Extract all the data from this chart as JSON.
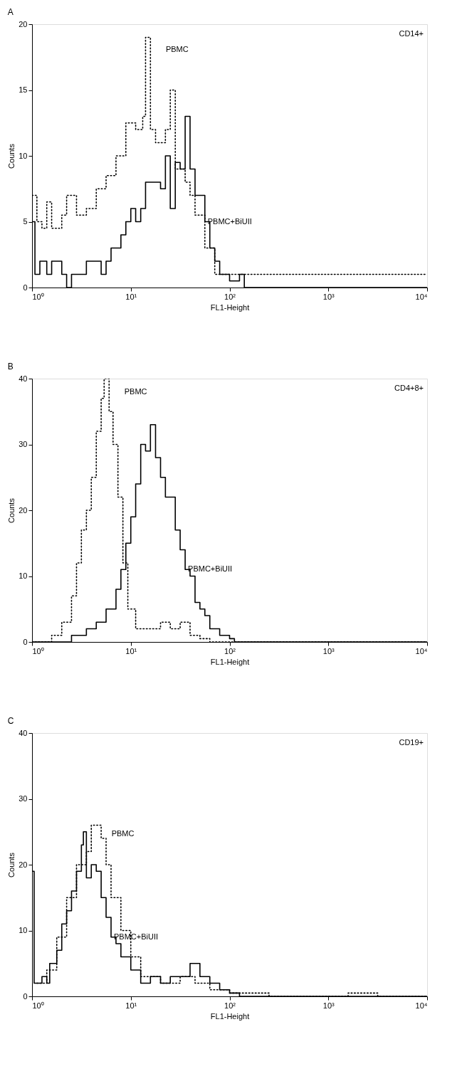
{
  "chart_data": [
    {
      "type": "step",
      "title": "A",
      "xlabel": "FL1-Height",
      "ylabel": "Counts",
      "annotations": [
        "CD14+"
      ],
      "log": "x",
      "grid": false,
      "xlim": [
        1,
        10000
      ],
      "xticks": [
        {
          "value": 1,
          "label": "10⁰"
        },
        {
          "value": 10,
          "label": "10¹"
        },
        {
          "value": 100,
          "label": "10²"
        },
        {
          "value": 1000,
          "label": "10³"
        },
        {
          "value": 10000,
          "label": "10⁴"
        }
      ],
      "ylim": [
        0,
        20
      ],
      "yticks": [
        0,
        5,
        10,
        15,
        20
      ],
      "series": [
        {
          "name": "PBMC",
          "color": "#000000",
          "line_style": "dotted",
          "x": [
            1,
            1.12,
            1.26,
            1.41,
            1.58,
            2.0,
            2.24,
            2.82,
            3.55,
            4.47,
            5.62,
            7.08,
            8.91,
            11.2,
            13.2,
            14.1,
            15.8,
            17.8,
            22.4,
            25.1,
            28.2,
            35.5,
            39.8,
            44.7,
            56.2,
            70.8,
            100,
            158,
            251,
            398,
            631,
            1000,
            1585,
            2512,
            3981,
            7943,
            10000
          ],
          "values": [
            7,
            5,
            4.5,
            6.5,
            4.5,
            5.5,
            7,
            5.5,
            6,
            7.5,
            8.5,
            10,
            12.5,
            12,
            13,
            19,
            12,
            11,
            12,
            15,
            9,
            8,
            7,
            5.5,
            3,
            1,
            1,
            1,
            1,
            1,
            1,
            1,
            1,
            1,
            1,
            1,
            1
          ]
        },
        {
          "name": "PBMC+BiUII",
          "color": "#000000",
          "line_style": "solid",
          "x": [
            1,
            1.07,
            1.2,
            1.41,
            1.58,
            2.0,
            2.24,
            2.51,
            3.16,
            3.55,
            4.47,
            5.01,
            5.62,
            6.31,
            7.94,
            8.91,
            10,
            11.2,
            12.6,
            14.1,
            20,
            22.4,
            25.1,
            28.2,
            31.6,
            35.5,
            39.8,
            44.7,
            56.2,
            63.1,
            70.8,
            79.4,
            100,
            126,
            141,
            200,
            1000,
            10000
          ],
          "values": [
            5,
            1,
            2,
            1,
            2,
            1,
            0,
            1,
            1,
            2,
            2,
            1,
            2,
            3,
            4,
            5,
            6,
            5,
            6,
            8,
            7.5,
            10,
            6,
            9.5,
            9,
            13,
            9,
            7,
            5,
            3,
            2,
            1,
            0.5,
            1,
            0,
            0,
            0,
            0
          ]
        }
      ]
    },
    {
      "type": "step",
      "title": "B",
      "xlabel": "FL1-Height",
      "ylabel": "Counts",
      "annotations": [
        "CD4+8+"
      ],
      "log": "x",
      "grid": false,
      "xlim": [
        1,
        10000
      ],
      "xticks": [
        {
          "value": 1,
          "label": "10⁰"
        },
        {
          "value": 10,
          "label": "10¹"
        },
        {
          "value": 100,
          "label": "10²"
        },
        {
          "value": 1000,
          "label": "10³"
        },
        {
          "value": 10000,
          "label": "10⁴"
        }
      ],
      "ylim": [
        0,
        40
      ],
      "yticks": [
        0,
        10,
        20,
        30,
        40
      ],
      "series": [
        {
          "name": "PBMC",
          "color": "#000000",
          "line_style": "dotted",
          "x": [
            1,
            1.58,
            2.0,
            2.51,
            2.82,
            3.16,
            3.55,
            3.98,
            4.47,
            5.01,
            5.37,
            6.03,
            6.61,
            7.41,
            8.32,
            9.33,
            11.2,
            15.8,
            20,
            25.1,
            31.6,
            39.8,
            50.1,
            63.1,
            10000
          ],
          "values": [
            0,
            1,
            3,
            7,
            12,
            17,
            20,
            25,
            32,
            37,
            40,
            35,
            30,
            22,
            12,
            5,
            2,
            2,
            3,
            2,
            3,
            1,
            0.5,
            0,
            0
          ]
        },
        {
          "name": "PBMC+BiUII",
          "color": "#000000",
          "line_style": "solid",
          "x": [
            1,
            2.0,
            2.51,
            3.55,
            4.47,
            5.62,
            7.08,
            7.94,
            8.91,
            10,
            11.2,
            12.6,
            14.1,
            15.8,
            17.8,
            20,
            22.4,
            28.2,
            31.6,
            35.5,
            39.8,
            44.7,
            50.1,
            56.2,
            63.1,
            79.4,
            100,
            112,
            10000
          ],
          "values": [
            0,
            0,
            1,
            2,
            3,
            5,
            8,
            11,
            15,
            19,
            24,
            30,
            29,
            33,
            28,
            25,
            22,
            17,
            14,
            11,
            10,
            6,
            5,
            4,
            2,
            1,
            0.5,
            0,
            0
          ]
        }
      ]
    },
    {
      "type": "step",
      "title": "C",
      "xlabel": "FL1-Height",
      "ylabel": "Counts",
      "annotations": [
        "CD19+"
      ],
      "log": "x",
      "grid": false,
      "xlim": [
        1,
        10000
      ],
      "xticks": [
        {
          "value": 1,
          "label": "10⁰"
        },
        {
          "value": 10,
          "label": "10¹"
        },
        {
          "value": 100,
          "label": "10²"
        },
        {
          "value": 1000,
          "label": "10³"
        },
        {
          "value": 10000,
          "label": "10⁴"
        }
      ],
      "ylim": [
        0,
        40
      ],
      "yticks": [
        0,
        10,
        20,
        30,
        40
      ],
      "series": [
        {
          "name": "PBMC",
          "color": "#000000",
          "line_style": "dotted",
          "x": [
            1.12,
            1.41,
            1.78,
            2.24,
            2.82,
            3.55,
            3.98,
            5.01,
            5.62,
            6.31,
            7.94,
            10,
            12.6,
            20,
            31.6,
            44.7,
            63.1,
            100,
            158,
            251,
            1585,
            3162,
            10000
          ],
          "values": [
            2,
            4,
            9,
            15,
            20,
            22,
            26,
            24,
            20,
            15,
            10,
            6,
            3,
            2,
            3,
            2,
            1,
            0.5,
            0.5,
            0,
            0.5,
            0,
            0
          ]
        },
        {
          "name": "PBMC+BiUII",
          "color": "#000000",
          "line_style": "solid",
          "x": [
            1,
            1.05,
            1.26,
            1.41,
            1.51,
            1.78,
            2.0,
            2.24,
            2.51,
            2.82,
            3.16,
            3.31,
            3.55,
            3.98,
            4.47,
            5.01,
            5.62,
            6.31,
            7.08,
            7.94,
            10,
            12.6,
            15.8,
            20,
            25.1,
            31.6,
            39.8,
            50.1,
            63.1,
            79.4,
            100,
            126,
            10000
          ],
          "values": [
            19,
            2,
            3,
            2,
            5,
            7,
            11,
            13,
            16,
            19,
            23,
            25,
            18,
            20,
            19,
            15,
            12,
            9,
            8,
            6,
            4,
            2,
            3,
            2,
            3,
            3,
            5,
            3,
            2,
            1,
            0.5,
            0,
            0
          ]
        }
      ]
    }
  ]
}
